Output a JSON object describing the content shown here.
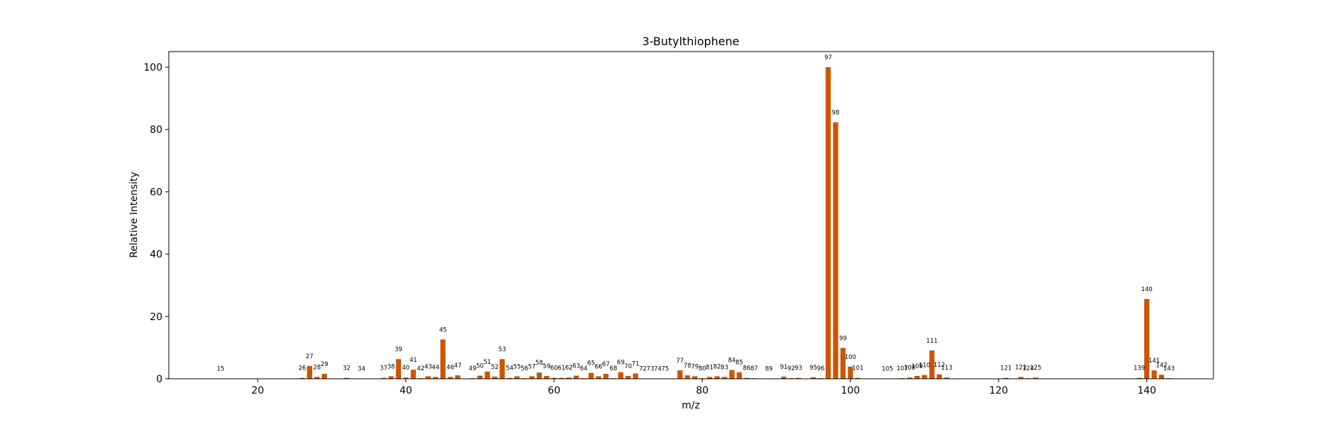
{
  "chart_data": {
    "type": "bar",
    "title": "3-Butylthiophene",
    "xlabel": "m/z",
    "ylabel": "Relative Intensity",
    "xlim": [
      8,
      149
    ],
    "ylim": [
      0,
      105
    ],
    "x_ticks": [
      20,
      40,
      60,
      80,
      100,
      120,
      140
    ],
    "y_ticks": [
      0,
      20,
      40,
      60,
      80,
      100
    ],
    "grid": false,
    "bar_color": "#cc5500",
    "peaks": [
      {
        "mz": 15,
        "intensity": 0.1
      },
      {
        "mz": 26,
        "intensity": 0.3
      },
      {
        "mz": 27,
        "intensity": 4.1
      },
      {
        "mz": 28,
        "intensity": 0.6
      },
      {
        "mz": 29,
        "intensity": 1.6
      },
      {
        "mz": 32,
        "intensity": 0.3
      },
      {
        "mz": 34,
        "intensity": 0.1
      },
      {
        "mz": 37,
        "intensity": 0.3
      },
      {
        "mz": 38,
        "intensity": 0.8
      },
      {
        "mz": 39,
        "intensity": 6.3
      },
      {
        "mz": 40,
        "intensity": 0.4
      },
      {
        "mz": 41,
        "intensity": 2.9
      },
      {
        "mz": 42,
        "intensity": 0.2
      },
      {
        "mz": 43,
        "intensity": 0.8
      },
      {
        "mz": 44,
        "intensity": 0.6
      },
      {
        "mz": 45,
        "intensity": 12.6
      },
      {
        "mz": 46,
        "intensity": 0.6
      },
      {
        "mz": 47,
        "intensity": 1.1
      },
      {
        "mz": 49,
        "intensity": 0.2
      },
      {
        "mz": 50,
        "intensity": 1.0
      },
      {
        "mz": 51,
        "intensity": 2.3
      },
      {
        "mz": 52,
        "intensity": 0.7
      },
      {
        "mz": 53,
        "intensity": 6.3
      },
      {
        "mz": 54,
        "intensity": 0.3
      },
      {
        "mz": 55,
        "intensity": 0.8
      },
      {
        "mz": 56,
        "intensity": 0.2
      },
      {
        "mz": 57,
        "intensity": 0.8
      },
      {
        "mz": 58,
        "intensity": 2.0
      },
      {
        "mz": 59,
        "intensity": 0.9
      },
      {
        "mz": 60,
        "intensity": 0.3
      },
      {
        "mz": 61,
        "intensity": 0.3
      },
      {
        "mz": 62,
        "intensity": 0.4
      },
      {
        "mz": 63,
        "intensity": 1.0
      },
      {
        "mz": 64,
        "intensity": 0.2
      },
      {
        "mz": 65,
        "intensity": 1.9
      },
      {
        "mz": 66,
        "intensity": 0.8
      },
      {
        "mz": 67,
        "intensity": 1.6
      },
      {
        "mz": 68,
        "intensity": 0.2
      },
      {
        "mz": 69,
        "intensity": 2.1
      },
      {
        "mz": 70,
        "intensity": 0.9
      },
      {
        "mz": 71,
        "intensity": 1.7
      },
      {
        "mz": 72,
        "intensity": 0.1
      },
      {
        "mz": 73,
        "intensity": 0.1
      },
      {
        "mz": 74,
        "intensity": 0.1
      },
      {
        "mz": 75,
        "intensity": 0.1
      },
      {
        "mz": 77,
        "intensity": 2.7
      },
      {
        "mz": 78,
        "intensity": 1.1
      },
      {
        "mz": 79,
        "intensity": 0.8
      },
      {
        "mz": 80,
        "intensity": 0.2
      },
      {
        "mz": 81,
        "intensity": 0.6
      },
      {
        "mz": 82,
        "intensity": 0.8
      },
      {
        "mz": 83,
        "intensity": 0.6
      },
      {
        "mz": 84,
        "intensity": 2.8
      },
      {
        "mz": 85,
        "intensity": 2.1
      },
      {
        "mz": 86,
        "intensity": 0.3
      },
      {
        "mz": 87,
        "intensity": 0.2
      },
      {
        "mz": 89,
        "intensity": 0.1
      },
      {
        "mz": 91,
        "intensity": 0.7
      },
      {
        "mz": 92,
        "intensity": 0.2
      },
      {
        "mz": 93,
        "intensity": 0.3
      },
      {
        "mz": 95,
        "intensity": 0.5
      },
      {
        "mz": 96,
        "intensity": 0.2
      },
      {
        "mz": 97,
        "intensity": 100
      },
      {
        "mz": 98,
        "intensity": 82.3
      },
      {
        "mz": 99,
        "intensity": 9.9
      },
      {
        "mz": 100,
        "intensity": 3.9
      },
      {
        "mz": 101,
        "intensity": 0.3
      },
      {
        "mz": 105,
        "intensity": 0.1
      },
      {
        "mz": 107,
        "intensity": 0.2
      },
      {
        "mz": 108,
        "intensity": 0.4
      },
      {
        "mz": 109,
        "intensity": 0.9
      },
      {
        "mz": 110,
        "intensity": 1.2
      },
      {
        "mz": 111,
        "intensity": 9.1
      },
      {
        "mz": 112,
        "intensity": 1.4
      },
      {
        "mz": 113,
        "intensity": 0.4
      },
      {
        "mz": 121,
        "intensity": 0.3
      },
      {
        "mz": 123,
        "intensity": 0.6
      },
      {
        "mz": 124,
        "intensity": 0.2
      },
      {
        "mz": 125,
        "intensity": 0.4
      },
      {
        "mz": 139,
        "intensity": 0.3
      },
      {
        "mz": 140,
        "intensity": 25.6
      },
      {
        "mz": 141,
        "intensity": 2.7
      },
      {
        "mz": 142,
        "intensity": 1.3
      },
      {
        "mz": 143,
        "intensity": 0.2
      }
    ]
  }
}
